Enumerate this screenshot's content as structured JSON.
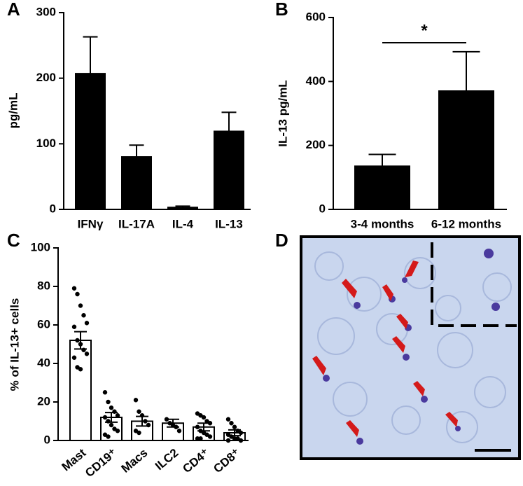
{
  "chart_data": [
    {
      "panel": "A",
      "type": "bar",
      "ylabel": "pg/mL",
      "categories": [
        "IFNγ",
        "IL-17A",
        "IL-4",
        "IL-13"
      ],
      "values": [
        207,
        80,
        3,
        119
      ],
      "errors": [
        56,
        18,
        2,
        29
      ],
      "error_bars": "up",
      "color": "#000000",
      "ylim": [
        0,
        300
      ],
      "yticks": [
        0,
        100,
        200,
        300
      ]
    },
    {
      "panel": "B",
      "type": "bar",
      "ylabel": "IL-13 pg/mL",
      "categories": [
        "3-4 months",
        "6-12 months"
      ],
      "values": [
        135,
        370
      ],
      "errors": [
        37,
        123
      ],
      "error_bars": "up",
      "color": "#000000",
      "ylim": [
        0,
        600
      ],
      "yticks": [
        0,
        200,
        400,
        600
      ],
      "annotation": "*"
    },
    {
      "panel": "C",
      "type": "bar",
      "ylabel": "% of IL-13+ cells",
      "categories": [
        "Mast",
        "CD19⁺",
        "Macs",
        "ILC2",
        "CD4⁺",
        "CD8⁺"
      ],
      "values": [
        52,
        12,
        10,
        9,
        7,
        4
      ],
      "errors": [
        4.5,
        2.5,
        2.5,
        2,
        2,
        1.5
      ],
      "error_bars": "both",
      "color": "#ffffff",
      "points": [
        [
          79,
          76,
          70,
          65,
          61,
          59,
          52,
          50,
          47,
          45,
          43,
          38,
          37
        ],
        [
          25,
          20,
          17,
          15,
          13,
          12,
          10,
          8,
          6,
          5,
          3,
          2
        ],
        [
          21,
          15,
          13,
          10,
          8,
          5,
          4
        ],
        [
          11,
          9,
          8,
          7,
          5
        ],
        [
          14,
          13,
          12,
          10,
          9,
          7,
          5,
          4,
          3,
          2,
          1,
          1
        ],
        [
          11,
          9,
          7,
          5,
          4,
          3,
          2,
          1,
          1,
          0,
          0
        ]
      ],
      "ylim": [
        0,
        100
      ],
      "yticks": [
        0,
        20,
        40,
        60,
        80,
        100
      ]
    },
    {
      "panel": "D",
      "type": "image"
    }
  ]
}
